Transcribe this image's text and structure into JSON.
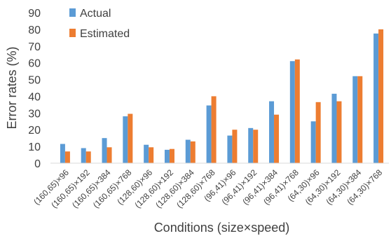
{
  "chart_data": {
    "type": "bar",
    "title": "",
    "xlabel": "Conditions (size×speed)",
    "ylabel": "Error rates (%)",
    "ylim": [
      0,
      90
    ],
    "yticks": [
      0,
      10,
      20,
      30,
      40,
      50,
      60,
      70,
      80,
      90
    ],
    "grid": false,
    "legend_position": "top-left",
    "categories": [
      "(160,65)×96",
      "(160,65)×192",
      "(160,65)×384",
      "(160,65)×768",
      "(128,60)×96",
      "(128,60)×192",
      "(128,60)×384",
      "(128,60)×768",
      "(96,41)×96",
      "(96,41)×192",
      "(96,41)×384",
      "(96,41)×768",
      "(64,30)×96",
      "(64,30)×192",
      "(64,30)×384",
      "(64,30)×768"
    ],
    "series": [
      {
        "name": "Actual",
        "color": "#5b9bd5",
        "values": [
          11.5,
          9,
          15,
          28,
          11,
          8,
          14,
          34.5,
          16.5,
          21,
          37,
          61,
          25,
          41.5,
          52,
          77.5
        ]
      },
      {
        "name": "Estimated",
        "color": "#ed7d31",
        "values": [
          7,
          7,
          9.5,
          29.5,
          9.5,
          8.5,
          13,
          40,
          20,
          20,
          29,
          62,
          36.5,
          37,
          52,
          80
        ]
      }
    ]
  }
}
